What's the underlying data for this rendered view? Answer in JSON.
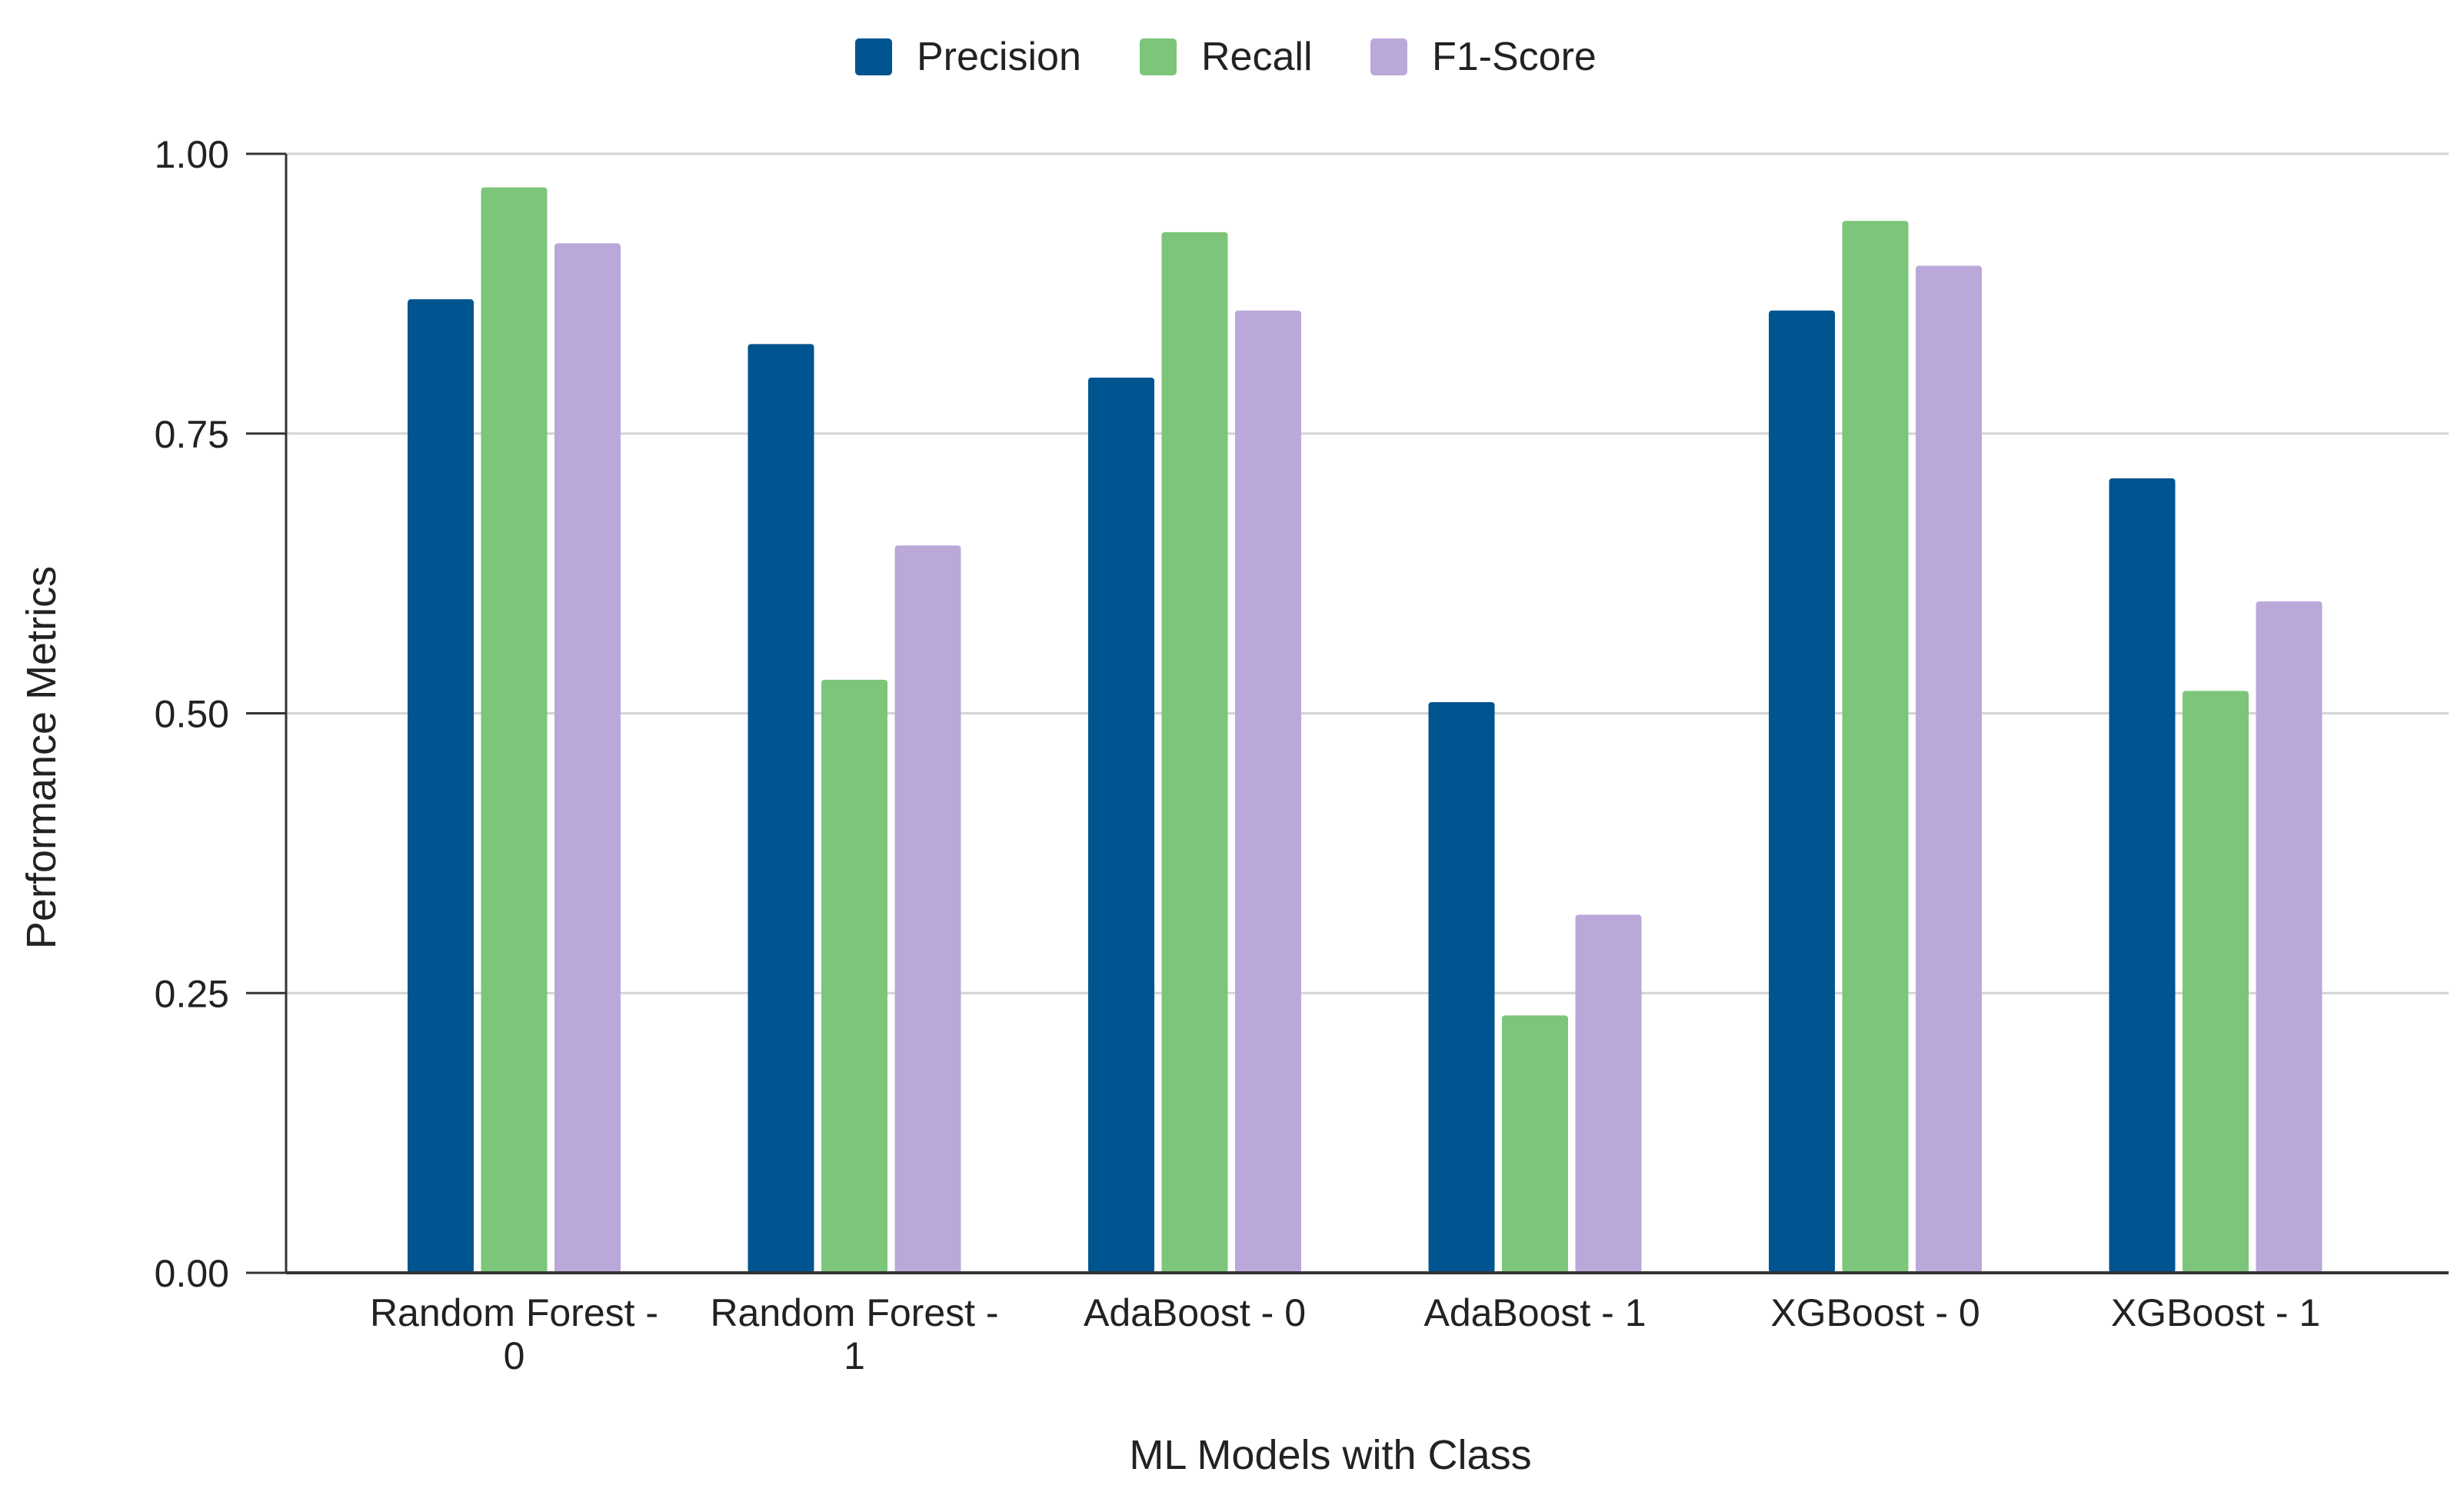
{
  "chart_data": {
    "type": "bar",
    "title": "",
    "xlabel": "ML Models with Class",
    "ylabel": "Performance Metrics",
    "ylim": [
      0,
      1
    ],
    "yticks": [
      "0.00",
      "0.25",
      "0.50",
      "0.75",
      "1.00"
    ],
    "ytick_values": [
      0,
      0.25,
      0.5,
      0.75,
      1
    ],
    "grid": true,
    "legend_position": "top-center",
    "categories": [
      [
        "Random Forest -",
        "0"
      ],
      [
        "Random Forest -",
        "1"
      ],
      [
        "AdaBoost - 0"
      ],
      [
        "AdaBoost - 1"
      ],
      [
        "XGBoost - 0"
      ],
      [
        "XGBoost - 1"
      ]
    ],
    "series": [
      {
        "name": "Precision",
        "color": "#00548F",
        "values": [
          0.87,
          0.83,
          0.8,
          0.51,
          0.86,
          0.71
        ]
      },
      {
        "name": "Recall",
        "color": "#7CC57A",
        "values": [
          0.97,
          0.53,
          0.93,
          0.23,
          0.94,
          0.52
        ]
      },
      {
        "name": "F1-Score",
        "color": "#BBA8DA",
        "values": [
          0.92,
          0.65,
          0.86,
          0.32,
          0.9,
          0.6
        ]
      }
    ]
  }
}
